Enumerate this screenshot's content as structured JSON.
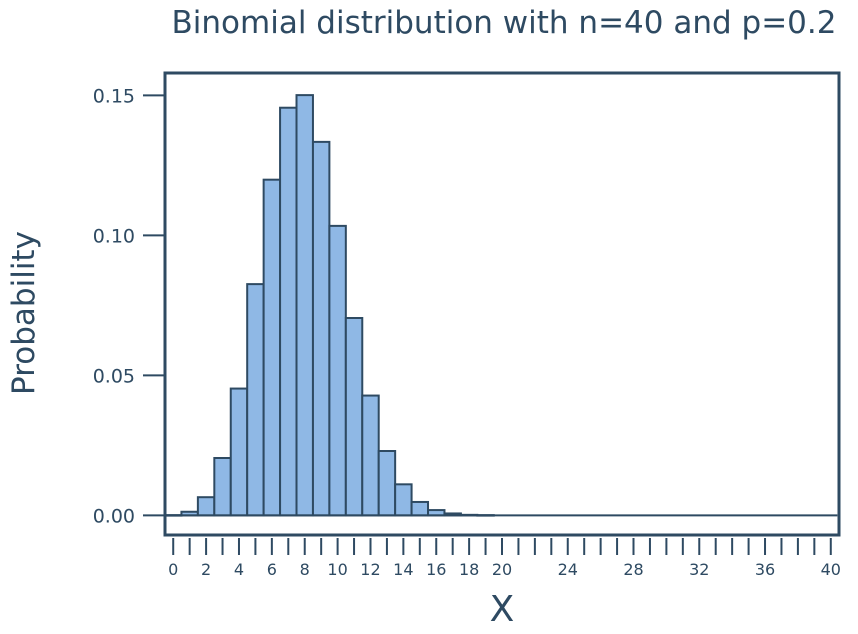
{
  "chart_data": {
    "type": "bar",
    "title": "Binomial distribution with n=40 and p=0.2",
    "xlabel": "X",
    "ylabel": "Probability",
    "x": [
      0,
      1,
      2,
      3,
      4,
      5,
      6,
      7,
      8,
      9,
      10,
      11,
      12,
      13,
      14,
      15,
      16,
      17,
      18,
      19,
      20,
      21,
      22,
      23,
      24,
      25,
      26,
      27,
      28,
      29,
      30,
      31,
      32,
      33,
      34,
      35,
      36,
      37,
      38,
      39,
      40
    ],
    "values": [
      0.0001,
      0.0013,
      0.0065,
      0.0205,
      0.0453,
      0.0826,
      0.1199,
      0.1456,
      0.1501,
      0.1334,
      0.1034,
      0.0705,
      0.0428,
      0.023,
      0.0111,
      0.0048,
      0.0019,
      0.0007,
      0.0002,
      0.0001,
      0,
      0,
      0,
      0,
      0,
      0,
      0,
      0,
      0,
      0,
      0,
      0,
      0,
      0,
      0,
      0,
      0,
      0,
      0,
      0,
      0
    ],
    "xlim": [
      -0.5,
      40.5
    ],
    "ylim": [
      -0.007,
      0.158
    ],
    "yticks": [
      0.0,
      0.05,
      0.1,
      0.15
    ],
    "ytick_labels": [
      "0.00",
      "0.05",
      "0.10",
      "0.15"
    ],
    "xticks_labeled": [
      0,
      2,
      4,
      6,
      8,
      10,
      12,
      14,
      16,
      18,
      20,
      24,
      28,
      32,
      36,
      40
    ],
    "grid": false,
    "colors": {
      "bar_fill": "#8fb8e5",
      "bar_edge": "#2e4a62",
      "text": "#2e4a62",
      "axis": "#2e4a62"
    }
  }
}
